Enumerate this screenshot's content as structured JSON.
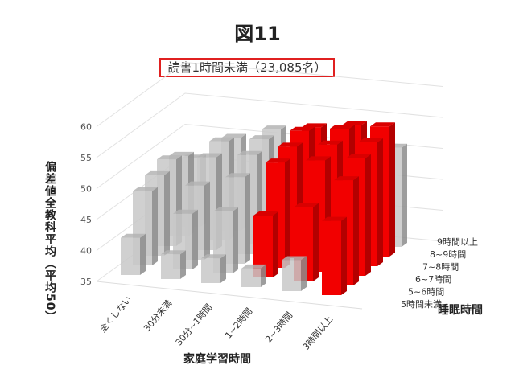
{
  "figure_title": "図11",
  "chart_data": {
    "type": "bar",
    "subtype": "3d-column",
    "title": "読書1時間未満（23,085名）",
    "xlabel": "家庭学習時間",
    "zlabel": "睡眠時間",
    "ylabel": "偏差値全教科平均（平均50）",
    "ylim": [
      35,
      60
    ],
    "yticks": [
      35,
      40,
      45,
      50,
      55,
      60
    ],
    "categories": [
      "全くしない",
      "30分未満",
      "30分~1時間",
      "1~2時間",
      "2~3時間",
      "3時間以上"
    ],
    "series": [
      {
        "name": "5時間未満",
        "values": [
          41,
          39,
          39,
          38,
          40,
          47
        ]
      },
      {
        "name": "5~6時間",
        "values": [
          47,
          44,
          45,
          45,
          47,
          52
        ]
      },
      {
        "name": "6~7時間",
        "values": [
          48,
          47,
          49,
          52,
          53,
          54
        ]
      },
      {
        "name": "7~8時間",
        "values": [
          49,
          50,
          51,
          53,
          54,
          55
        ]
      },
      {
        "name": "8~9時間",
        "values": [
          48,
          51,
          52,
          54,
          55,
          56
        ]
      },
      {
        "name": "9時間以上",
        "values": [
          46,
          50,
          52,
          53,
          54,
          51
        ]
      }
    ],
    "highlight": [
      [
        false,
        false,
        false,
        false,
        false,
        true
      ],
      [
        false,
        false,
        false,
        true,
        true,
        true
      ],
      [
        false,
        false,
        false,
        true,
        true,
        true
      ],
      [
        false,
        false,
        false,
        true,
        true,
        true
      ],
      [
        false,
        false,
        false,
        true,
        true,
        true
      ],
      [
        false,
        false,
        false,
        true,
        true,
        false
      ]
    ],
    "colors": {
      "highlight": "#ff0000",
      "normal": "#c8c8c8"
    },
    "grid": true
  }
}
